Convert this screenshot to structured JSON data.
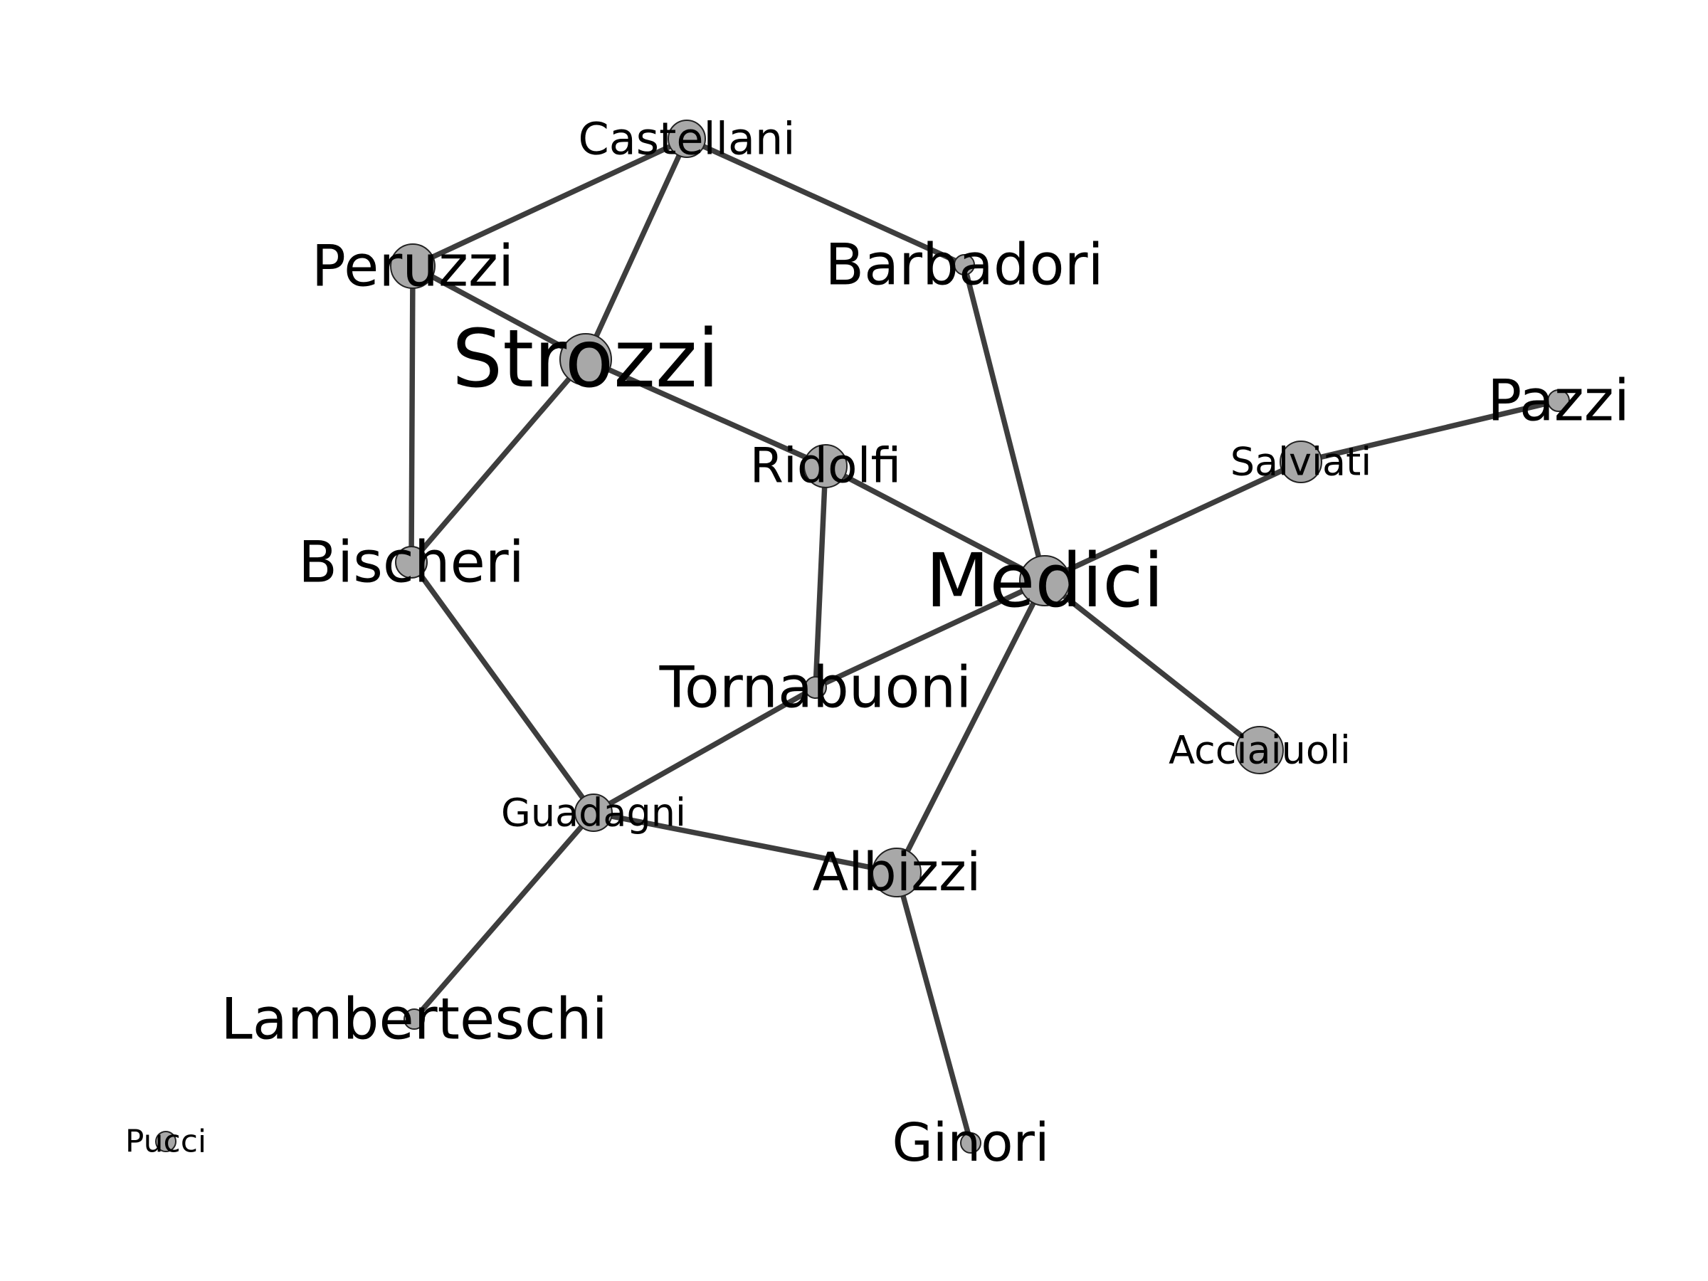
{
  "graph": {
    "nodes": [
      {
        "id": "castellani",
        "label": "Castellani"
      },
      {
        "id": "peruzzi",
        "label": "Peruzzi"
      },
      {
        "id": "barbadori",
        "label": "Barbadori"
      },
      {
        "id": "strozzi",
        "label": "Strozzi"
      },
      {
        "id": "pazzi",
        "label": "Pazzi"
      },
      {
        "id": "ridolfi",
        "label": "Ridolfi"
      },
      {
        "id": "salviati",
        "label": "Salviati"
      },
      {
        "id": "bischeri",
        "label": "Bischeri"
      },
      {
        "id": "medici",
        "label": "Medici"
      },
      {
        "id": "tornabuoni",
        "label": "Tornabuoni"
      },
      {
        "id": "acciaiuoli",
        "label": "Acciaiuoli"
      },
      {
        "id": "guadagni",
        "label": "Guadagni"
      },
      {
        "id": "albizzi",
        "label": "Albizzi"
      },
      {
        "id": "lamberteschi",
        "label": "Lamberteschi"
      },
      {
        "id": "pucci",
        "label": "Pucci"
      },
      {
        "id": "ginori",
        "label": "Ginori"
      }
    ],
    "edges": [
      [
        "castellani",
        "peruzzi"
      ],
      [
        "castellani",
        "strozzi"
      ],
      [
        "castellani",
        "barbadori"
      ],
      [
        "peruzzi",
        "strozzi"
      ],
      [
        "peruzzi",
        "bischeri"
      ],
      [
        "strozzi",
        "ridolfi"
      ],
      [
        "strozzi",
        "bischeri"
      ],
      [
        "barbadori",
        "medici"
      ],
      [
        "ridolfi",
        "medici"
      ],
      [
        "ridolfi",
        "tornabuoni"
      ],
      [
        "medici",
        "salviati"
      ],
      [
        "salviati",
        "pazzi"
      ],
      [
        "medici",
        "acciaiuoli"
      ],
      [
        "medici",
        "tornabuoni"
      ],
      [
        "medici",
        "albizzi"
      ],
      [
        "bischeri",
        "guadagni"
      ],
      [
        "tornabuoni",
        "guadagni"
      ],
      [
        "guadagni",
        "albizzi"
      ],
      [
        "guadagni",
        "lamberteschi"
      ],
      [
        "albizzi",
        "ginori"
      ]
    ]
  }
}
